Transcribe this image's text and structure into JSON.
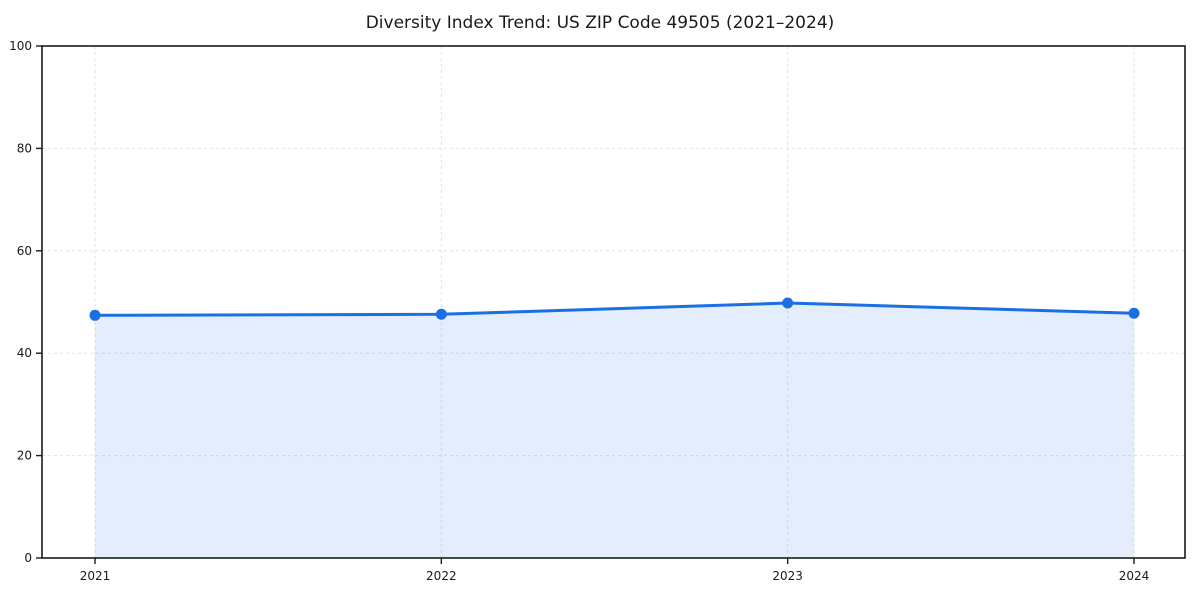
{
  "chart_data": {
    "type": "area",
    "title": "Diversity Index Trend: US ZIP Code 49505 (2021–2024)",
    "series_name": "Diversity Index",
    "categories": [
      "2021",
      "2022",
      "2023",
      "2024"
    ],
    "values": [
      47.4,
      47.6,
      49.8,
      47.8
    ],
    "xlabel": "",
    "ylabel": "",
    "ylim": [
      0,
      100
    ],
    "yticks": [
      0,
      20,
      40,
      60,
      80,
      100
    ],
    "grid": true,
    "grid_style": "dashed",
    "legend_position": "none",
    "colors": {
      "line": "#1a6fe3",
      "marker": "#1a6fe3",
      "fill": "#1a6fe3",
      "fill_opacity": 0.12,
      "grid": "#e2e2e2",
      "spine": "#1a1a1a",
      "text": "#1a1a1a",
      "background": "#ffffff"
    }
  }
}
